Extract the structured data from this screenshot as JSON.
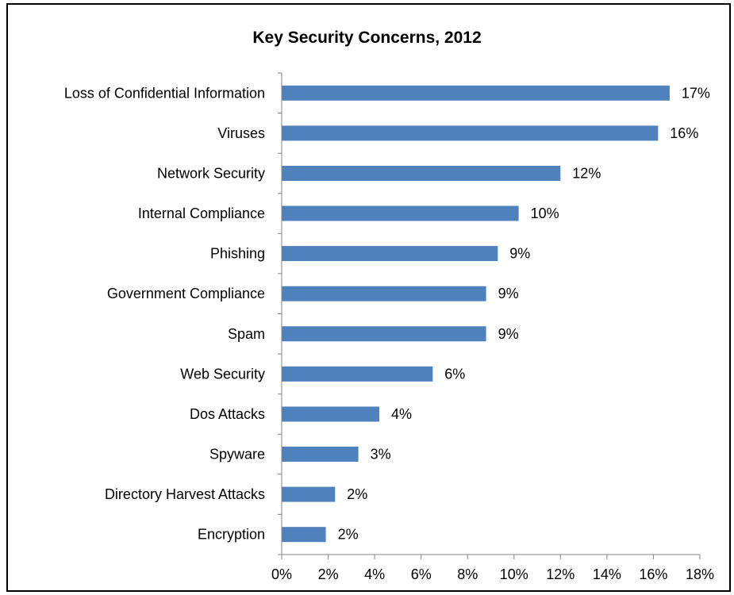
{
  "chart_data": {
    "type": "bar",
    "orientation": "horizontal",
    "title": "Key Security Concerns, 2012",
    "xlabel": "",
    "ylabel": "",
    "categories": [
      "Loss of Confidential Information",
      "Viruses",
      "Network Security",
      "Internal Compliance",
      "Phishing",
      "Government Compliance",
      "Spam",
      "Web Security",
      "Dos Attacks",
      "Spyware",
      "Directory Harvest Attacks",
      "Encryption"
    ],
    "values": [
      16.7,
      16.2,
      12.0,
      10.2,
      9.3,
      8.8,
      8.8,
      6.5,
      4.2,
      3.3,
      2.3,
      1.9
    ],
    "data_labels": [
      "17%",
      "16%",
      "12%",
      "10%",
      "9%",
      "9%",
      "9%",
      "6%",
      "4%",
      "3%",
      "2%",
      "2%"
    ],
    "xlim": [
      0,
      18
    ],
    "x_ticks": [
      "0%",
      "2%",
      "4%",
      "6%",
      "8%",
      "10%",
      "12%",
      "14%",
      "16%",
      "18%"
    ],
    "grid": false,
    "legend": "none",
    "bar_color": "#4f81bd"
  }
}
